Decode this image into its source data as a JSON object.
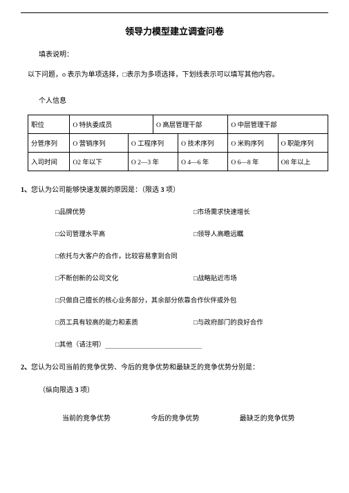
{
  "title": "领导力模型建立调查问卷",
  "form_instruction_label": "填表说明：",
  "instruction_text": "以下问题，o 表示为单项选择，□表示为多项选择，下划线表示可以填写其他内容。",
  "personal_info_label": "个人信息",
  "table": {
    "row1": {
      "label": "职位",
      "opt1": "O 特执委成员",
      "opt2": "O 高层管理干部",
      "opt3": "O 中层管理干部"
    },
    "row2": {
      "label": "分管序列",
      "opt1": "O 营销序列",
      "opt2": "O 工程序列",
      "opt3": "O 技术序列",
      "opt4": "O 米购序列",
      "opt5": "O 职能序列"
    },
    "row3": {
      "label": "入司时间",
      "opt1": "O2 年以下",
      "opt2": "O 2—3 年",
      "opt3": "O 4—6 年",
      "opt4": "O 6—8 年",
      "opt5": "O8 年以上"
    }
  },
  "q1": {
    "num": "1、",
    "text": "您认为公司能够快速发展的原因是：（限选 ",
    "limit": "3",
    "text_end": " 项）",
    "opts": {
      "a1": "□品牌优势",
      "a2": "□市场需求快速增长",
      "b1": "□公司管理水平高",
      "b2": "□领导人高瞻远瞩",
      "c1": "□依托与大客户的合作，比较容易拿到合同",
      "d1": "□不断创新的公司文化",
      "d2": "□战略贴近市场",
      "e1": "□只做自己擅长的核心业务部分，其余部分依靠合作伙伴或外包",
      "f1": "□员工具有较高的能力和素质",
      "f2": "□与政府部门的良好合作",
      "g1": "□其他（请注明）"
    }
  },
  "q2": {
    "num": "2、",
    "text": "您认为公司当前的竞争优势、今后的竞争优势和最缺乏的竞争优势分别是：",
    "sub": "（纵向限选 ",
    "limit": "3",
    "sub_end": " 项）",
    "cols": {
      "c1": "当前的竞争优势",
      "c2": "今后的竞争优势",
      "c3": "最缺乏的竞争优势"
    }
  }
}
